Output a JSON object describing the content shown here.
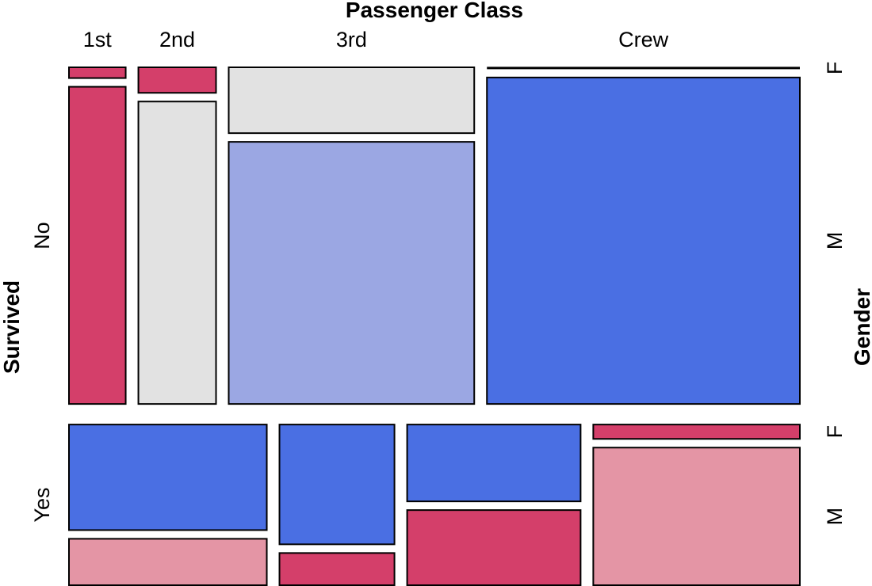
{
  "chart_data": {
    "type": "mosaic",
    "x_title": "Passenger Class",
    "y_title": "Survived",
    "right_title": "Gender",
    "row_labels": [
      "No",
      "Yes"
    ],
    "inner_labels": [
      "F",
      "M"
    ],
    "rows": [
      {
        "survived": "No",
        "total": 1490,
        "columns": [
          {
            "class": "1st",
            "F": 4,
            "M": 118,
            "colors": [
              "#d43f6a",
              "#d43f6a"
            ]
          },
          {
            "class": "2nd",
            "F": 13,
            "M": 154,
            "colors": [
              "#d43f6a",
              "#e2e2e2"
            ]
          },
          {
            "class": "3rd",
            "F": 106,
            "M": 422,
            "colors": [
              "#e2e2e2",
              "#9ba7e3"
            ]
          },
          {
            "class": "Crew",
            "F": 3,
            "M": 670,
            "colors": [
              "#4a6fe3",
              "#4a6fe3"
            ]
          }
        ]
      },
      {
        "survived": "Yes",
        "total": 711,
        "columns": [
          {
            "class": "1st",
            "F": 141,
            "M": 62,
            "colors": [
              "#4a6fe3",
              "#e495a5"
            ]
          },
          {
            "class": "2nd",
            "F": 93,
            "M": 25,
            "colors": [
              "#4a6fe3",
              "#d43f6a"
            ]
          },
          {
            "class": "3rd",
            "F": 90,
            "M": 88,
            "colors": [
              "#4a6fe3",
              "#d43f6a"
            ]
          },
          {
            "class": "Crew",
            "F": 20,
            "M": 192,
            "colors": [
              "#d43f6a",
              "#e495a5"
            ]
          }
        ]
      }
    ]
  }
}
